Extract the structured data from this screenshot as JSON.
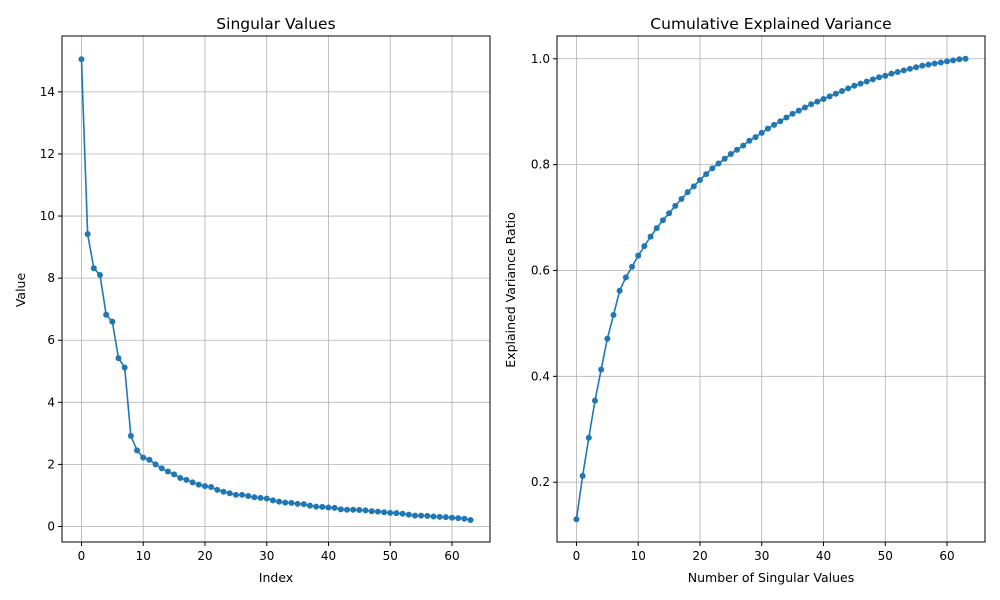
{
  "style": {
    "series_color": "#1f77b4",
    "grid": true
  },
  "chart_data": [
    {
      "type": "line",
      "title": "Singular Values",
      "xlabel": "Index",
      "ylabel": "Value",
      "xlim": [
        -3.15,
        66.15
      ],
      "ylim": [
        -0.5,
        15.8
      ],
      "xticks": [
        0,
        10,
        20,
        30,
        40,
        50,
        60
      ],
      "yticks": [
        0,
        2,
        4,
        6,
        8,
        10,
        12,
        14
      ],
      "grid": true,
      "markers": true,
      "x_start": 0,
      "values": [
        15.05,
        9.42,
        8.32,
        8.1,
        6.82,
        6.6,
        5.42,
        5.12,
        2.92,
        2.45,
        2.22,
        2.15,
        2.0,
        1.87,
        1.77,
        1.68,
        1.56,
        1.5,
        1.42,
        1.35,
        1.3,
        1.27,
        1.18,
        1.12,
        1.07,
        1.02,
        1.02,
        0.98,
        0.94,
        0.92,
        0.9,
        0.84,
        0.8,
        0.77,
        0.76,
        0.73,
        0.72,
        0.67,
        0.64,
        0.63,
        0.61,
        0.6,
        0.55,
        0.54,
        0.54,
        0.53,
        0.52,
        0.49,
        0.48,
        0.46,
        0.44,
        0.43,
        0.41,
        0.38,
        0.35,
        0.35,
        0.34,
        0.32,
        0.31,
        0.3,
        0.28,
        0.27,
        0.25,
        0.21
      ]
    },
    {
      "type": "line",
      "title": "Cumulative Explained Variance",
      "xlabel": "Number of Singular Values",
      "ylabel": "Explained Variance Ratio",
      "xlim": [
        -3.15,
        66.15
      ],
      "ylim": [
        0.087,
        1.043
      ],
      "xticks": [
        0,
        10,
        20,
        30,
        40,
        50,
        60
      ],
      "yticks": [
        0.2,
        0.4,
        0.6,
        0.8,
        1.0
      ],
      "grid": true,
      "markers": true,
      "x_start": 0,
      "values": [
        0.13,
        0.212,
        0.284,
        0.354,
        0.413,
        0.471,
        0.516,
        0.562,
        0.587,
        0.607,
        0.628,
        0.646,
        0.664,
        0.68,
        0.695,
        0.708,
        0.722,
        0.735,
        0.748,
        0.759,
        0.771,
        0.782,
        0.793,
        0.802,
        0.811,
        0.82,
        0.828,
        0.836,
        0.845,
        0.852,
        0.86,
        0.868,
        0.875,
        0.882,
        0.889,
        0.896,
        0.902,
        0.908,
        0.914,
        0.919,
        0.924,
        0.929,
        0.934,
        0.939,
        0.944,
        0.949,
        0.953,
        0.957,
        0.961,
        0.965,
        0.968,
        0.972,
        0.975,
        0.978,
        0.981,
        0.984,
        0.987,
        0.989,
        0.991,
        0.993,
        0.995,
        0.997,
        0.999,
        1.0
      ]
    }
  ]
}
